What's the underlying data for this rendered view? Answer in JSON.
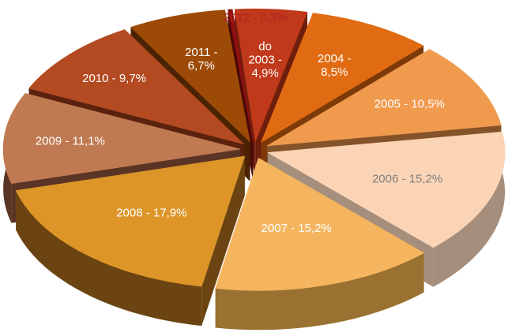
{
  "chart_data": {
    "type": "pie",
    "title": "",
    "style": "3d-exploded",
    "legend": "none",
    "slices": [
      {
        "label": "do 2003 - 4,9%",
        "category": "do 2003",
        "value": 4.9,
        "color": "#c0391b",
        "side": "#6e1f0c",
        "text_color": "#ffffff"
      },
      {
        "label": "2004 - 8,5%",
        "category": "2004",
        "value": 8.5,
        "color": "#e06b12",
        "side": "#7d3a08",
        "text_color": "#ffffff"
      },
      {
        "label": "2005 - 10,5%",
        "category": "2005",
        "value": 10.5,
        "color": "#f09a4e",
        "side": "#85532a",
        "text_color": "#ffffff"
      },
      {
        "label": "2006 - 15,2%",
        "category": "2006",
        "value": 15.2,
        "color": "#fbd4b6",
        "side": "#a58e7c",
        "text_color": "#7f7f7f"
      },
      {
        "label": "2007 - 15,2%",
        "category": "2007",
        "value": 15.2,
        "color": "#f4b55e",
        "side": "#9a7130",
        "text_color": "#ffffff"
      },
      {
        "label": "2008 - 17,9%",
        "category": "2008",
        "value": 17.9,
        "color": "#dd9528",
        "side": "#6b4412",
        "text_color": "#ffffff"
      },
      {
        "label": "2009 - 11,1%",
        "category": "2009",
        "value": 11.1,
        "color": "#c07a52",
        "side": "#5a3424",
        "text_color": "#ffffff"
      },
      {
        "label": "2010 - 9,7%",
        "category": "2010",
        "value": 9.7,
        "color": "#b44a22",
        "side": "#5a220e",
        "text_color": "#ffffff"
      },
      {
        "label": "2011 - 6,7%",
        "category": "2011",
        "value": 6.7,
        "color": "#9c4a06",
        "side": "#4c2302",
        "text_color": "#ffffff"
      },
      {
        "label": "2012 - 0,3%",
        "category": "2012",
        "value": 0.3,
        "color": "#8f1010",
        "side": "#4a0808",
        "text_color": "#b22222"
      }
    ]
  }
}
